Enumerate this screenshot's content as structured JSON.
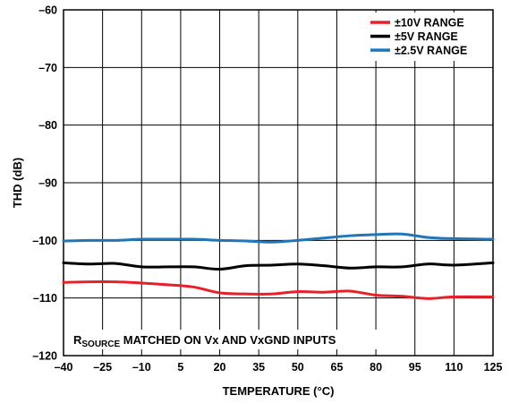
{
  "chart_data": {
    "type": "line",
    "xlabel": "TEMPERATURE (°C)",
    "ylabel": "THD (dB)",
    "xlim": [
      -40,
      125
    ],
    "ylim": [
      -120,
      -60
    ],
    "x_ticks": [
      -40,
      -25,
      -10,
      5,
      20,
      35,
      50,
      65,
      80,
      95,
      110,
      125
    ],
    "x_tick_labels": [
      "–40",
      "–25",
      "–10",
      "5",
      "20",
      "35",
      "50",
      "65",
      "80",
      "95",
      "110",
      "125"
    ],
    "y_ticks": [
      -60,
      -70,
      -80,
      -90,
      -100,
      -110,
      -120
    ],
    "y_tick_labels": [
      "–60",
      "–70",
      "–80",
      "–90",
      "–100",
      "–110",
      "–120"
    ],
    "grid": true,
    "legend_position": "top-right",
    "annotation": {
      "prefix": "R",
      "subscript": "SOURCE",
      "suffix": " MATCHED ON Vx AND VxGND INPUTS"
    },
    "series": [
      {
        "name": "±10V RANGE",
        "color": "#e8202a",
        "x": [
          -40,
          -30,
          -20,
          -10,
          0,
          10,
          20,
          30,
          40,
          50,
          60,
          70,
          80,
          90,
          100,
          110,
          125
        ],
        "y": [
          -107.3,
          -107.2,
          -107.2,
          -107.4,
          -107.7,
          -108.1,
          -109.1,
          -109.3,
          -109.3,
          -108.9,
          -109.0,
          -108.8,
          -109.5,
          -109.7,
          -110.1,
          -109.8,
          -109.8
        ]
      },
      {
        "name": "±5V RANGE",
        "color": "#000000",
        "x": [
          -40,
          -30,
          -20,
          -10,
          0,
          10,
          20,
          30,
          40,
          50,
          60,
          70,
          80,
          90,
          100,
          110,
          125
        ],
        "y": [
          -103.9,
          -104.1,
          -104.0,
          -104.6,
          -104.6,
          -104.6,
          -105.0,
          -104.4,
          -104.3,
          -104.1,
          -104.4,
          -104.8,
          -104.6,
          -104.6,
          -104.1,
          -104.3,
          -103.9
        ]
      },
      {
        "name": "±2.5V RANGE",
        "color": "#1f76b8",
        "x": [
          -40,
          -30,
          -20,
          -10,
          0,
          10,
          20,
          30,
          40,
          50,
          60,
          70,
          80,
          90,
          100,
          110,
          125
        ],
        "y": [
          -100.1,
          -100.0,
          -100.0,
          -99.8,
          -99.8,
          -99.8,
          -100.0,
          -100.1,
          -100.3,
          -100.0,
          -99.6,
          -99.2,
          -99.0,
          -98.9,
          -99.5,
          -99.7,
          -99.8
        ]
      }
    ]
  }
}
